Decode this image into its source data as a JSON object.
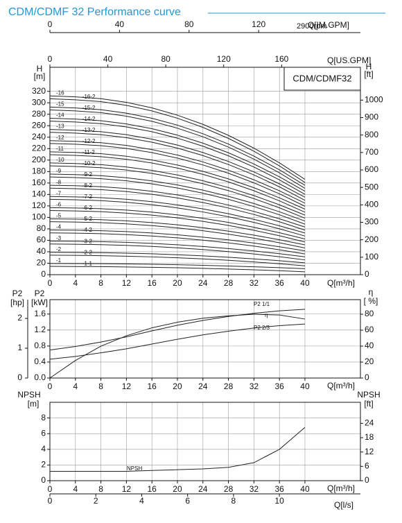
{
  "chart_data": [
    {
      "type": "line",
      "title": "CDM/CDMF 32 Performance curve",
      "subtitle": "2900rpm",
      "model_label": "CDM/CDMF32",
      "color": "#222222",
      "grid": true,
      "xlabel": "Q[m³/h]",
      "x": [
        0,
        4,
        8,
        12,
        16,
        20,
        24,
        28,
        32,
        36,
        40
      ],
      "xlim": [
        0,
        48.7
      ],
      "xticks": [
        0,
        4,
        8,
        12,
        16,
        20,
        24,
        28,
        32,
        36,
        40
      ],
      "x2label": "Q[IM.GPM]",
      "x2lim": [
        0,
        178.5
      ],
      "x2ticks": [
        0,
        40,
        80,
        120
      ],
      "x3label": "Q[US.GPM]",
      "x3lim": [
        0,
        214.4
      ],
      "x3ticks": [
        0,
        40,
        80,
        120,
        160
      ],
      "ylabel": "H",
      "yunit": "[m]",
      "ylim": [
        0,
        362
      ],
      "yticks": [
        0,
        20,
        40,
        60,
        80,
        100,
        120,
        140,
        160,
        180,
        200,
        220,
        240,
        260,
        280,
        300,
        320
      ],
      "y2label": "H",
      "y2unit": "[ft]",
      "y2lim": [
        0,
        1188
      ],
      "y2ticks": [
        0,
        100,
        200,
        300,
        400,
        500,
        600,
        700,
        800,
        900,
        1000
      ],
      "series": [
        {
          "name": "-1",
          "values": [
            19.5,
            19.4,
            19.2,
            18.8,
            18.2,
            17.4,
            16.4,
            15.2,
            13.8,
            12.2,
            10.4
          ]
        },
        {
          "name": "-1-1",
          "values": [
            14.5,
            14.3,
            14,
            13.5,
            12.9,
            12.1,
            11.1,
            9.9,
            8.5,
            6.9,
            5
          ]
        },
        {
          "name": "-2",
          "values": [
            39,
            38.8,
            38.4,
            37.6,
            36.4,
            34.8,
            32.8,
            30.4,
            27.6,
            24.4,
            20.8
          ]
        },
        {
          "name": "-2-2",
          "values": [
            34,
            33.7,
            33.2,
            32.3,
            31.1,
            29.5,
            27.5,
            25.1,
            22.3,
            19.1,
            15.4
          ]
        },
        {
          "name": "-3",
          "values": [
            58.5,
            58.2,
            57.6,
            56.4,
            54.6,
            52.2,
            49.2,
            45.6,
            41.4,
            36.6,
            31.2
          ]
        },
        {
          "name": "-3-2",
          "values": [
            53.5,
            53.1,
            52.4,
            51.1,
            49.3,
            46.9,
            43.9,
            40.3,
            36.1,
            31.3,
            25.8
          ]
        },
        {
          "name": "-4",
          "values": [
            78,
            77.6,
            76.8,
            75.2,
            72.8,
            69.6,
            65.6,
            60.8,
            55.2,
            48.8,
            41.6
          ]
        },
        {
          "name": "-4-2",
          "values": [
            73,
            72.5,
            71.6,
            69.9,
            67.5,
            64.3,
            60.3,
            55.5,
            49.9,
            43.5,
            36.2
          ]
        },
        {
          "name": "-5",
          "values": [
            97.5,
            97,
            96,
            94,
            91,
            87,
            82,
            76,
            69,
            61,
            52
          ]
        },
        {
          "name": "-5-2",
          "values": [
            92.5,
            91.9,
            90.8,
            88.7,
            85.7,
            81.7,
            76.7,
            70.7,
            63.7,
            55.7,
            46.6
          ]
        },
        {
          "name": "-6",
          "values": [
            117,
            116.4,
            115.2,
            112.8,
            109.2,
            104.4,
            98.4,
            91.2,
            82.8,
            73.2,
            62.4
          ]
        },
        {
          "name": "-6-2",
          "values": [
            112,
            111.3,
            110,
            107.5,
            103.9,
            99.1,
            93.1,
            85.9,
            77.5,
            67.9,
            57
          ]
        },
        {
          "name": "-7",
          "values": [
            136.5,
            135.8,
            134.4,
            131.6,
            127.4,
            121.8,
            114.8,
            106.4,
            96.6,
            85.4,
            72.8
          ]
        },
        {
          "name": "-7-2",
          "values": [
            131.5,
            130.7,
            129.2,
            126.3,
            122.1,
            116.5,
            109.5,
            101.1,
            91.3,
            80.1,
            67.4
          ]
        },
        {
          "name": "-8",
          "values": [
            156,
            155.2,
            153.6,
            150.4,
            145.6,
            139.2,
            131.2,
            121.6,
            110.4,
            97.6,
            83.2
          ]
        },
        {
          "name": "-8-2",
          "values": [
            151,
            150.1,
            148.4,
            145.1,
            140.3,
            133.9,
            125.9,
            116.3,
            105.1,
            92.3,
            77.8
          ]
        },
        {
          "name": "-9",
          "values": [
            175.5,
            174.6,
            172.8,
            169.2,
            163.8,
            156.6,
            147.6,
            136.8,
            124.2,
            109.8,
            93.6
          ]
        },
        {
          "name": "-9-2",
          "values": [
            170.5,
            169.5,
            167.6,
            163.9,
            158.5,
            151.3,
            142.3,
            131.5,
            118.9,
            104.5,
            88.2
          ]
        },
        {
          "name": "-10",
          "values": [
            195,
            194,
            192,
            188,
            182,
            174,
            164,
            152,
            138,
            122,
            104
          ]
        },
        {
          "name": "-10-2",
          "values": [
            190,
            188.9,
            186.8,
            182.7,
            176.7,
            168.7,
            158.7,
            146.7,
            132.7,
            116.7,
            98.6
          ]
        },
        {
          "name": "-11",
          "values": [
            214.5,
            213.4,
            211.2,
            206.8,
            200.2,
            191.4,
            180.4,
            167.2,
            151.8,
            134.2,
            114.4
          ]
        },
        {
          "name": "-11-2",
          "values": [
            209.5,
            208.3,
            206,
            201.5,
            194.9,
            186.1,
            175.1,
            161.9,
            146.5,
            128.9,
            109
          ]
        },
        {
          "name": "-12",
          "values": [
            234,
            232.8,
            230.4,
            225.6,
            218.4,
            208.8,
            196.8,
            182.4,
            165.6,
            146.4,
            124.8
          ]
        },
        {
          "name": "-12-2",
          "values": [
            229,
            227.7,
            225.2,
            220.3,
            213.1,
            203.5,
            191.5,
            177.1,
            160.3,
            141.1,
            119.4
          ]
        },
        {
          "name": "-13",
          "values": [
            253.5,
            252.2,
            249.6,
            244.4,
            236.6,
            226.2,
            213.2,
            197.6,
            179.4,
            158.6,
            135.2
          ]
        },
        {
          "name": "-13-2",
          "values": [
            248.5,
            247.1,
            244.4,
            239.1,
            231.3,
            220.9,
            207.9,
            192.3,
            174.1,
            153.3,
            129.8
          ]
        },
        {
          "name": "-14",
          "values": [
            273,
            271.6,
            268.8,
            263.2,
            254.8,
            243.6,
            229.6,
            212.8,
            193.2,
            170.8,
            145.6
          ]
        },
        {
          "name": "-14-2",
          "values": [
            268,
            266.5,
            263.6,
            257.9,
            249.5,
            238.3,
            224.3,
            207.5,
            187.9,
            165.5,
            140.2
          ]
        },
        {
          "name": "-15",
          "values": [
            292.5,
            291,
            288,
            282,
            273,
            261,
            246,
            228,
            207,
            183,
            156
          ]
        },
        {
          "name": "-15-2",
          "values": [
            287.5,
            285.9,
            282.8,
            276.7,
            267.7,
            255.7,
            240.7,
            222.7,
            201.7,
            177.7,
            150.6
          ]
        },
        {
          "name": "-16",
          "values": [
            312,
            310.4,
            307.2,
            300.8,
            291.2,
            278.4,
            262.4,
            243.2,
            220.8,
            195.2,
            166.4
          ]
        },
        {
          "name": "-16-2",
          "values": [
            307,
            305.3,
            302,
            295.5,
            285.9,
            273.1,
            257.1,
            237.9,
            215.5,
            189.9,
            161
          ]
        }
      ]
    },
    {
      "type": "line",
      "color": "#222222",
      "grid": true,
      "xlabel": "Q[m³/h]",
      "x": [
        0,
        4,
        8,
        12,
        16,
        20,
        24,
        28,
        32,
        36,
        40
      ],
      "xlim": [
        0,
        48.7
      ],
      "xticks": [
        0,
        4,
        8,
        12,
        16,
        20,
        24,
        28,
        32,
        36,
        40
      ],
      "ylabel": "P2",
      "yunit": "[kW]",
      "ylim": [
        0,
        1.96
      ],
      "yticks": [
        {
          "value": 0,
          "label": "0.0"
        },
        0.4,
        0.8,
        1.2,
        1.6
      ],
      "y2label": "η",
      "y2unit": "[ %]",
      "y2lim": [
        0,
        98.3
      ],
      "y2ticks": [
        0,
        20,
        40,
        60,
        80
      ],
      "y3label": "P2",
      "y3unit": "[hp]",
      "y3lim": [
        0,
        2.63
      ],
      "y3ticks": [
        0,
        1,
        2
      ],
      "series": [
        {
          "name": "P2 1/1",
          "values": [
            0.7,
            0.79,
            0.9,
            1.03,
            1.18,
            1.32,
            1.44,
            1.54,
            1.62,
            1.68,
            1.72
          ]
        },
        {
          "name": "η",
          "axis": "y2",
          "values": [
            0,
            22,
            40,
            53,
            63,
            70,
            75,
            78,
            80,
            79,
            74
          ]
        },
        {
          "name": "P2 2/3",
          "values": [
            0.47,
            0.54,
            0.63,
            0.73,
            0.85,
            0.97,
            1.08,
            1.17,
            1.25,
            1.31,
            1.35
          ]
        }
      ]
    },
    {
      "type": "line",
      "color": "#222222",
      "grid": true,
      "xlabel": "Q[m³/h]",
      "x": [
        0,
        4,
        8,
        12,
        16,
        20,
        24,
        28,
        32,
        36,
        40
      ],
      "xlim": [
        0,
        48.7
      ],
      "xticks": [
        0,
        4,
        8,
        12,
        16,
        20,
        24,
        28,
        32,
        36,
        40
      ],
      "x2label": "Q[l/s]",
      "x2lim": [
        0,
        13.53
      ],
      "x2ticks": [
        0,
        2,
        4,
        6,
        8,
        10
      ],
      "ylabel": "NPSH",
      "yunit": "[m]",
      "ylim": [
        0,
        10
      ],
      "yticks": [
        0,
        2,
        4,
        6,
        8
      ],
      "y2label": "NPSH",
      "y2unit": "[ft]",
      "y2lim": [
        0,
        32.8
      ],
      "y2ticks": [
        0,
        6,
        12,
        18,
        24
      ],
      "series": [
        {
          "name": "NPSH",
          "values": [
            1.2,
            1.2,
            1.2,
            1.2,
            1.3,
            1.4,
            1.5,
            1.7,
            2.3,
            4,
            6.8
          ]
        }
      ]
    }
  ]
}
